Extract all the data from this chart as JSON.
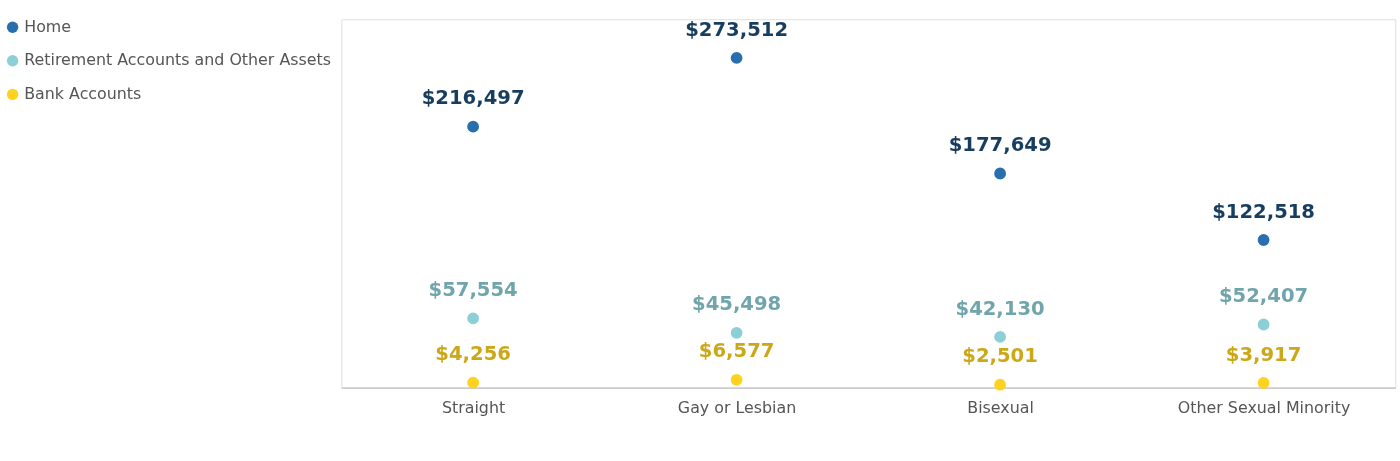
{
  "chart_data": {
    "type": "scatter",
    "categories": [
      "Straight",
      "Gay or Lesbian",
      "Bisexual",
      "Other Sexual Minority"
    ],
    "series": [
      {
        "name": "Home",
        "color": "#2a6fad",
        "values": [
          216497,
          273512,
          177649,
          122518
        ],
        "value_labels": [
          "$216,497",
          "$273,512",
          "$177,649",
          "$122,518"
        ]
      },
      {
        "name": "Retirement Accounts and Other Assets",
        "color": "#8ccfd6",
        "values": [
          57554,
          45498,
          42130,
          52407
        ],
        "value_labels": [
          "$57,554",
          "$45,498",
          "$42,130",
          "$52,407"
        ]
      },
      {
        "name": "Bank Accounts",
        "color": "#ffd21f",
        "values": [
          4256,
          6577,
          2501,
          3917
        ],
        "value_labels": [
          "$4,256",
          "$6,577",
          "$2,501",
          "$3,917"
        ]
      }
    ],
    "legend": "left",
    "grid": false
  }
}
